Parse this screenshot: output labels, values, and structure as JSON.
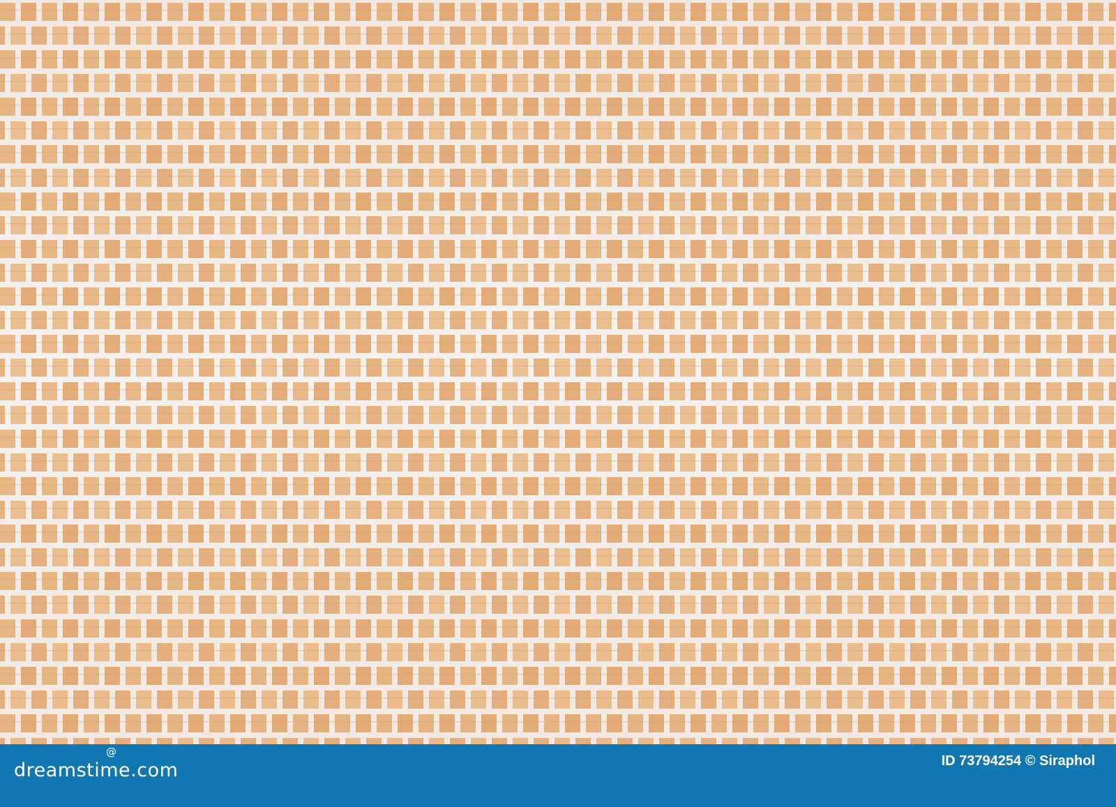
{
  "image": {
    "subject": "woven bamboo and white cord mat texture",
    "colors": {
      "wood": "#e8b888",
      "wood_dark": "#d9a06a",
      "cord": "#f4f1ee",
      "footer": "#1177b0"
    }
  },
  "footer": {
    "logo_text": "dreamstime.com",
    "credit": "ID 73794254 © Siraphol"
  }
}
